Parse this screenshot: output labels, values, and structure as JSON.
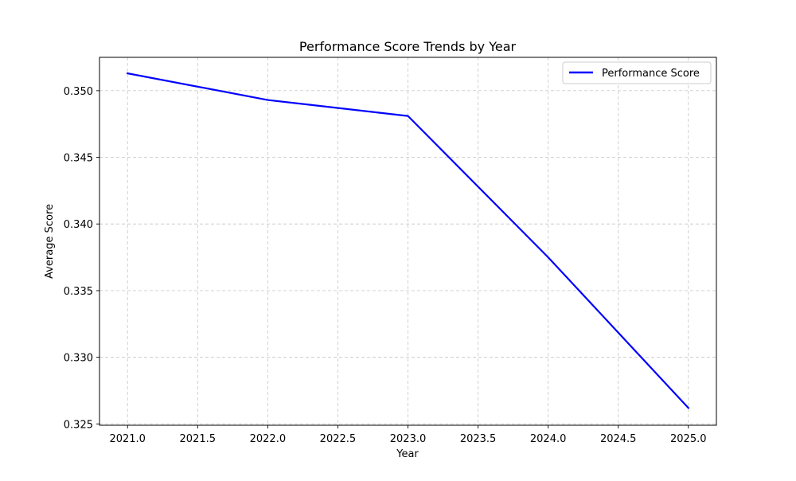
{
  "chart_data": {
    "type": "line",
    "title": "Performance Score Trends by Year",
    "xlabel": "Year",
    "ylabel": "Average Score",
    "xlim": [
      2020.8,
      2025.2
    ],
    "ylim": [
      0.3249,
      0.3525
    ],
    "xticks": [
      2021.0,
      2021.5,
      2022.0,
      2022.5,
      2023.0,
      2023.5,
      2024.0,
      2024.5,
      2025.0
    ],
    "xtick_labels": [
      "2021.0",
      "2021.5",
      "2022.0",
      "2022.5",
      "2023.0",
      "2023.5",
      "2024.0",
      "2024.5",
      "2025.0"
    ],
    "yticks": [
      0.325,
      0.33,
      0.335,
      0.34,
      0.345,
      0.35
    ],
    "ytick_labels": [
      "0.325",
      "0.330",
      "0.335",
      "0.340",
      "0.345",
      "0.350"
    ],
    "grid": true,
    "legend_position": "top-right",
    "series": [
      {
        "name": "Performance Score",
        "color": "#0000ff",
        "x": [
          2021,
          2022,
          2023,
          2024,
          2025
        ],
        "y": [
          0.3513,
          0.3493,
          0.3481,
          0.3375,
          0.3262
        ]
      }
    ]
  }
}
